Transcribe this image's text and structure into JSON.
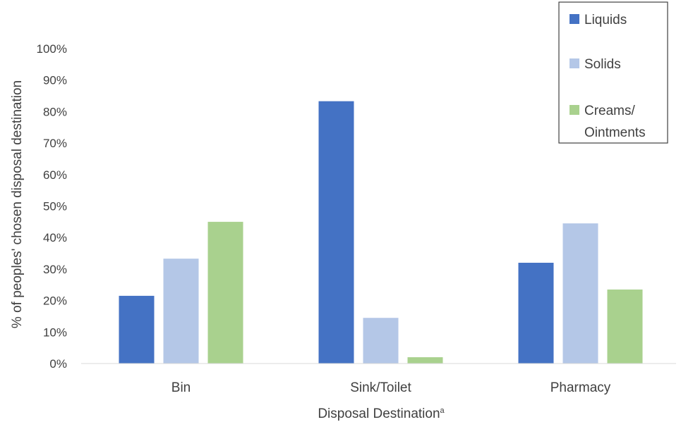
{
  "chart_data": {
    "type": "bar",
    "categories": [
      "Bin",
      "Sink/Toilet",
      "Pharmacy"
    ],
    "series": [
      {
        "name": "Liquids",
        "values": [
          21.5,
          83.3,
          32.0
        ],
        "color": "#4472c4"
      },
      {
        "name": "Solids",
        "values": [
          33.3,
          14.5,
          44.5
        ],
        "color": "#b4c7e7"
      },
      {
        "name": "Creams/ Ointments",
        "name_lines": [
          "Creams/",
          "Ointments"
        ],
        "values": [
          45.0,
          2.0,
          23.5
        ],
        "color": "#a9d18e"
      }
    ],
    "xlabel": "Disposal Destination",
    "xlabel_superscript": "a",
    "ylabel": "% of peoples' chosen disposal destination",
    "ylim": [
      0,
      100
    ],
    "ytick_step": 10,
    "ytick_labels": [
      "0%",
      "10%",
      "20%",
      "30%",
      "40%",
      "50%",
      "60%",
      "70%",
      "80%",
      "90%",
      "100%"
    ],
    "grid": false,
    "legend_position": "top-right"
  }
}
